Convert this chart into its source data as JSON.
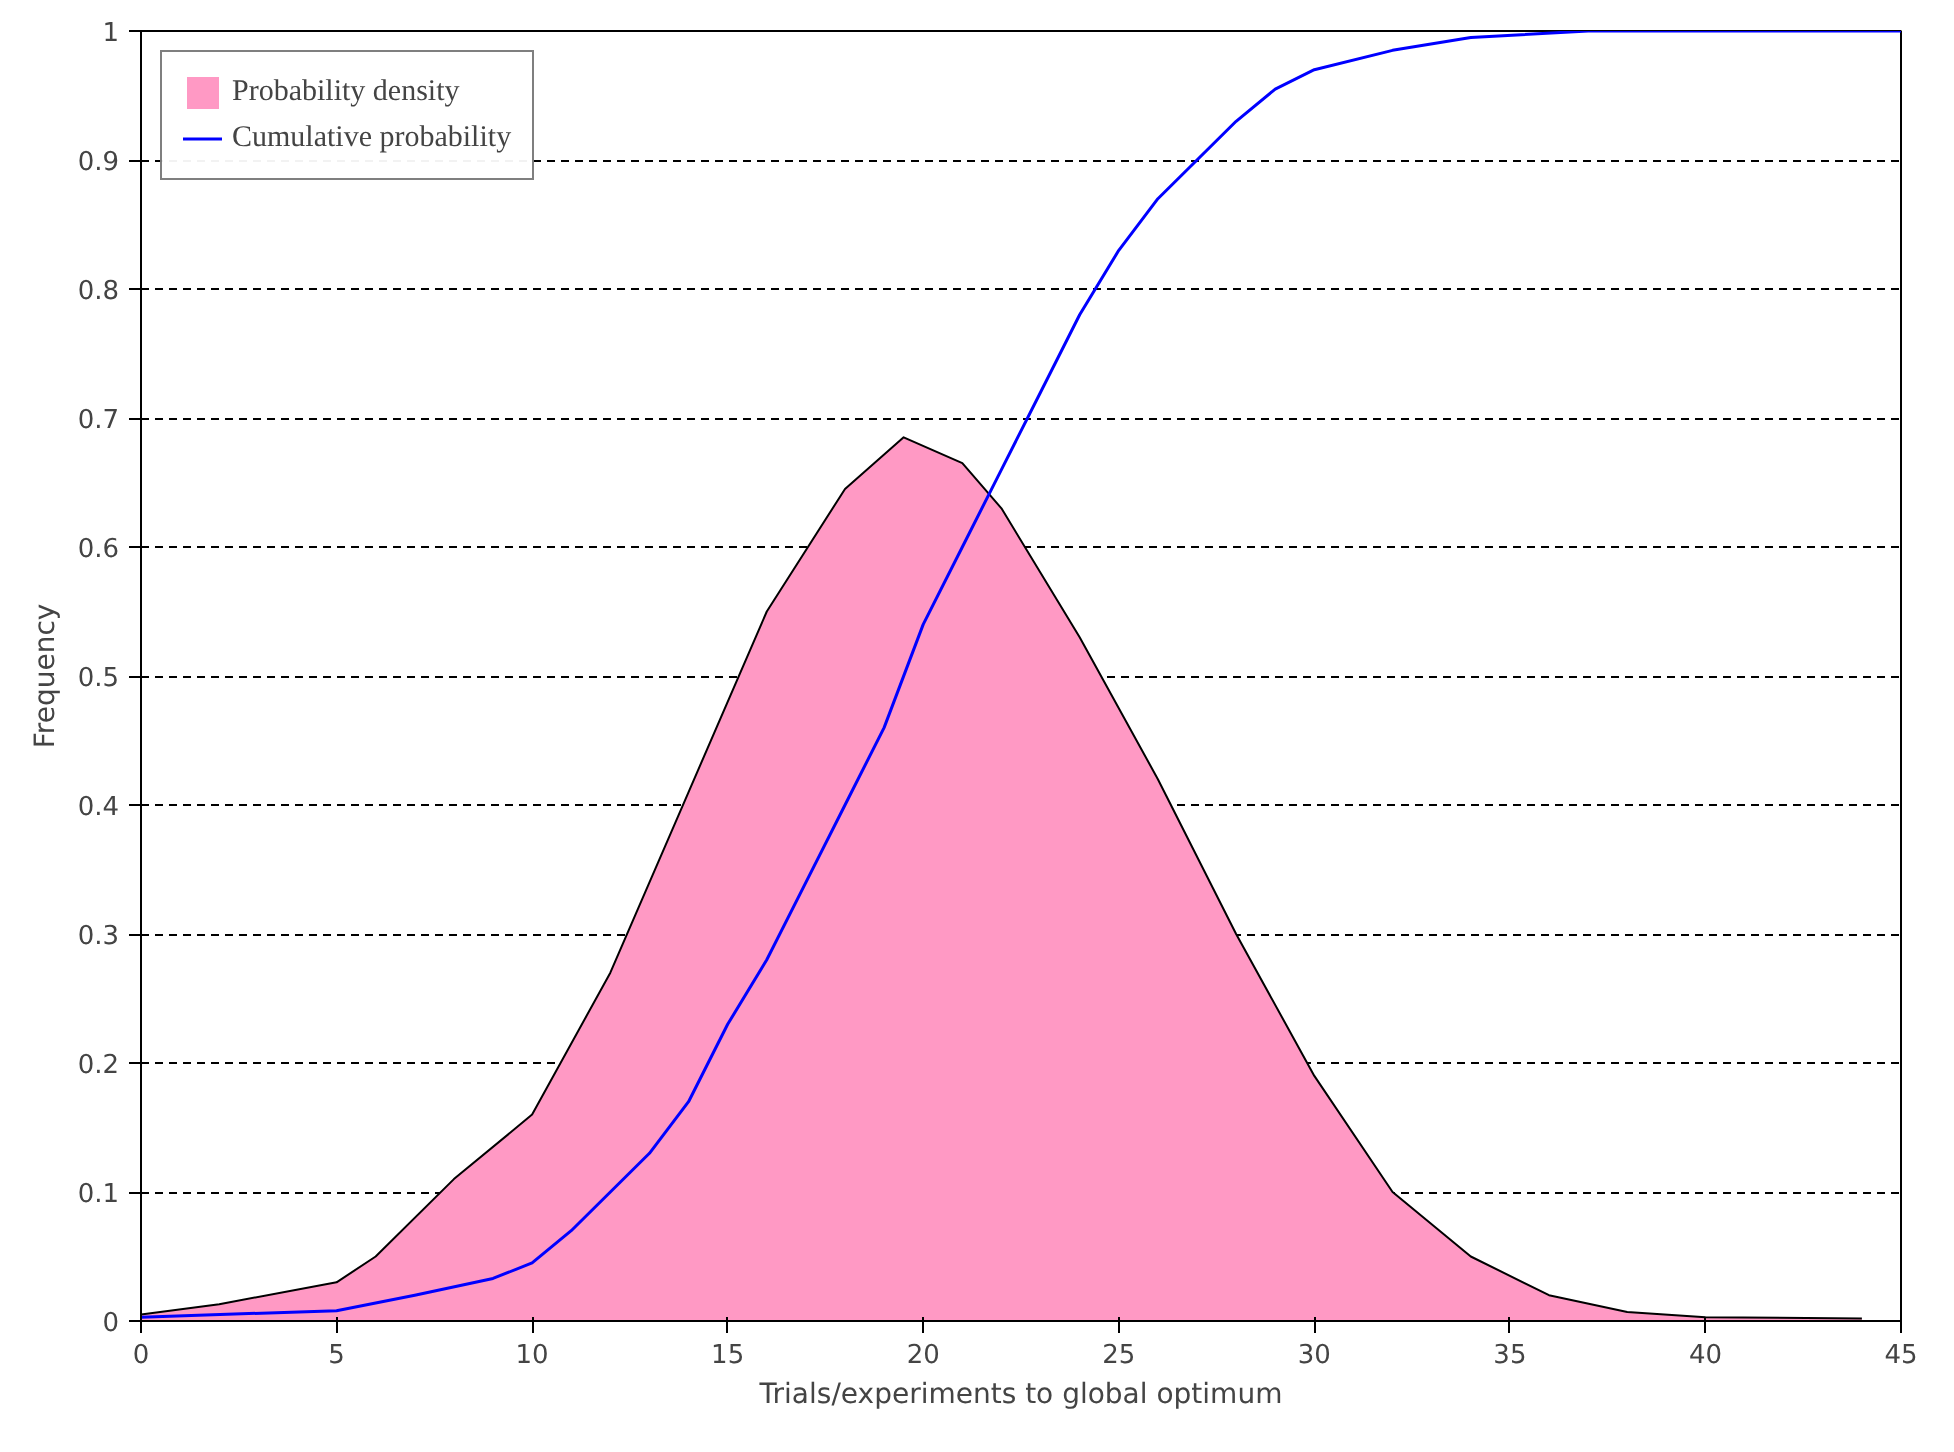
{
  "chart_data": {
    "type": "area",
    "xlabel": "Trials/experiments to global optimum",
    "ylabel": "Frequency",
    "xlim": [
      0,
      45
    ],
    "xticks": [
      0,
      5,
      10,
      15,
      20,
      25,
      30,
      35,
      40,
      45
    ],
    "ylim": [
      0,
      1
    ],
    "yticks": [
      0,
      0.1,
      0.2,
      0.3,
      0.4,
      0.5,
      0.6,
      0.7,
      0.8,
      0.9,
      1
    ],
    "grid": "y",
    "legend": "top left",
    "marker": "none",
    "line_style": "solid",
    "series": [
      {
        "name": "Probability density",
        "color": "#ff99c4",
        "x": [
          0,
          2,
          5,
          6,
          8,
          10,
          12,
          14,
          16,
          18,
          19.5,
          21,
          22,
          24,
          26,
          28,
          30,
          32,
          34,
          36,
          38,
          40,
          44
        ],
        "values": [
          0.005,
          0.013,
          0.03,
          0.05,
          0.11,
          0.16,
          0.27,
          0.41,
          0.55,
          0.645,
          0.685,
          0.665,
          0.63,
          0.53,
          0.42,
          0.3,
          0.19,
          0.1,
          0.05,
          0.02,
          0.007,
          0.003,
          0.002
        ]
      },
      {
        "name": "Cumulative probability",
        "type": "line",
        "color": "#0000ff",
        "x": [
          0,
          5,
          7,
          9,
          10,
          11,
          12,
          13,
          14,
          15,
          16,
          17,
          18,
          19,
          20,
          21,
          22,
          23,
          24,
          25,
          26,
          27,
          28,
          29,
          30,
          32,
          34,
          37,
          45
        ],
        "values": [
          0.003,
          0.008,
          0.02,
          0.033,
          0.045,
          0.07,
          0.1,
          0.13,
          0.17,
          0.23,
          0.28,
          0.34,
          0.4,
          0.46,
          0.54,
          0.6,
          0.66,
          0.72,
          0.78,
          0.83,
          0.87,
          0.9,
          0.93,
          0.955,
          0.97,
          0.985,
          0.995,
          1.0,
          1.0
        ]
      }
    ]
  }
}
